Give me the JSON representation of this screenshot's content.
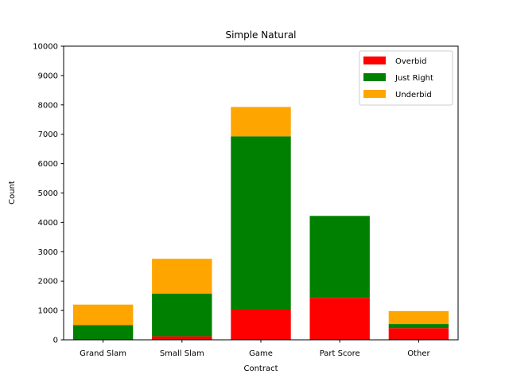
{
  "chart_data": {
    "type": "bar",
    "stacked": true,
    "title": "Simple Natural",
    "xlabel": "Contract",
    "ylabel": "Count",
    "ylim": [
      0,
      10000
    ],
    "yticks": [
      0,
      1000,
      2000,
      3000,
      4000,
      5000,
      6000,
      7000,
      8000,
      9000,
      10000
    ],
    "categories": [
      "Grand Slam",
      "Small Slam",
      "Game",
      "Part Score",
      "Other"
    ],
    "series": [
      {
        "name": "Overbid",
        "color": "#ff0000",
        "values": [
          0,
          120,
          1030,
          1430,
          400
        ]
      },
      {
        "name": "Just Right",
        "color": "#008000",
        "values": [
          500,
          1450,
          5900,
          2790,
          140
        ]
      },
      {
        "name": "Underbid",
        "color": "#ffa500",
        "values": [
          700,
          1190,
          1000,
          0,
          440
        ]
      }
    ],
    "legend": {
      "position": "top-right"
    },
    "grid": false
  }
}
